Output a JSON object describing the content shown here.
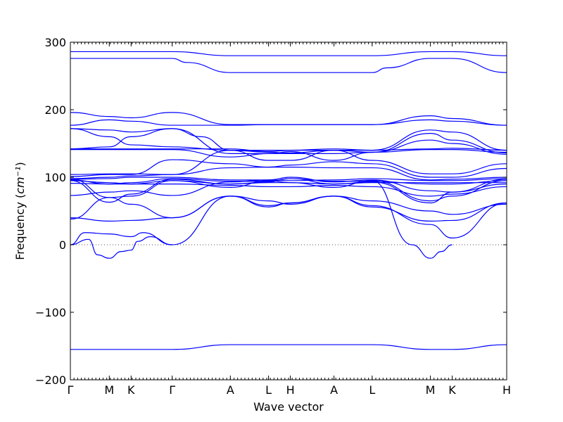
{
  "chart_data": {
    "type": "line",
    "xlabel": "Wave vector",
    "ylabel": "Frequency",
    "ylabel_unit": "cm⁻¹",
    "ylim": [
      -200,
      300
    ],
    "yticks": [
      300,
      200,
      100,
      0,
      -100,
      -200
    ],
    "ytick_labels": [
      "300",
      "200",
      "100",
      "0",
      "−100",
      "−200"
    ],
    "xlim": [
      0,
      12
    ],
    "xticks": [
      {
        "x": 0,
        "label": "Γ"
      },
      {
        "x": 1.07,
        "label": "M"
      },
      {
        "x": 1.67,
        "label": "K"
      },
      {
        "x": 2.8,
        "label": "Γ"
      },
      {
        "x": 4.4,
        "label": "A"
      },
      {
        "x": 5.45,
        "label": "L"
      },
      {
        "x": 6.05,
        "label": "H"
      },
      {
        "x": 7.25,
        "label": "A"
      },
      {
        "x": 8.3,
        "label": "L"
      },
      {
        "x": 9.9,
        "label": "M"
      },
      {
        "x": 10.5,
        "label": "K"
      },
      {
        "x": 12,
        "label": "H"
      }
    ],
    "zero_line": true,
    "series": [
      {
        "x": [
          0,
          1.07,
          1.67,
          2.8,
          4.4,
          5.45,
          6.05,
          7.25,
          8.3,
          9.9,
          10.5,
          12
        ],
        "values": [
          286,
          286,
          286,
          286,
          280,
          280,
          280,
          280,
          280,
          286,
          286,
          280
        ]
      },
      {
        "x": [
          0,
          1.07,
          1.67,
          2.8,
          3.2,
          4.4,
          5.45,
          6.05,
          7.25,
          8.3,
          8.7,
          9.9,
          10.5,
          12
        ],
        "values": [
          276,
          276,
          276,
          276,
          270,
          255,
          255,
          255,
          255,
          255,
          262,
          276,
          276,
          255
        ]
      },
      {
        "x": [
          0,
          1.07,
          1.67,
          2.8,
          4.4,
          5.45,
          6.05,
          7.25,
          8.3,
          9.9,
          10.5,
          12
        ],
        "values": [
          196,
          190,
          188,
          196,
          178,
          178,
          178,
          178,
          178,
          191,
          187,
          177
        ]
      },
      {
        "x": [
          0,
          1.07,
          1.67,
          2.8,
          4.4,
          5.45,
          6.05,
          7.25,
          8.3,
          9.9,
          10.5,
          12
        ],
        "values": [
          177,
          185,
          183,
          177,
          177,
          178,
          178,
          178,
          178,
          185,
          183,
          177
        ]
      },
      {
        "x": [
          0,
          1.07,
          1.67,
          2.8,
          3.6,
          4.4,
          5.45,
          6.05,
          7.25,
          8.3,
          9.9,
          10.5,
          12
        ],
        "values": [
          172,
          170,
          167,
          172,
          160,
          140,
          140,
          140,
          140,
          140,
          170,
          167,
          140
        ]
      },
      {
        "x": [
          0,
          1.07,
          1.67,
          2.8,
          4.4,
          5.45,
          6.05,
          7.25,
          8.3,
          9.9,
          10.5,
          12
        ],
        "values": [
          172,
          160,
          148,
          145,
          140,
          137,
          136,
          140,
          137,
          165,
          155,
          136
        ]
      },
      {
        "x": [
          0,
          1.07,
          1.67,
          2.8,
          4.4,
          5.45,
          6.05,
          7.25,
          8.3,
          9.9,
          10.5,
          12
        ],
        "values": [
          142,
          145,
          160,
          172,
          135,
          135,
          135,
          135,
          137,
          155,
          150,
          134
        ]
      },
      {
        "x": [
          0,
          1.07,
          1.67,
          2.8,
          4.4,
          5.45,
          6.05,
          7.25,
          8.3,
          9.9,
          10.5,
          12
        ],
        "values": [
          142,
          142,
          142,
          142,
          142,
          138,
          140,
          142,
          140,
          142,
          143,
          140
        ]
      },
      {
        "x": [
          0,
          1.07,
          1.67,
          2.8,
          4.4,
          5.45,
          6.05,
          7.25,
          8.3,
          9.9,
          10.5,
          12
        ],
        "values": [
          141,
          141,
          141,
          141,
          130,
          135,
          138,
          125,
          137,
          141,
          141,
          137
        ]
      },
      {
        "x": [
          0,
          1.07,
          1.67,
          2.8,
          4.4,
          5.45,
          6.05,
          7.25,
          8.3,
          9.9,
          10.5,
          12
        ],
        "values": [
          104,
          105,
          105,
          104,
          140,
          125,
          125,
          140,
          125,
          105,
          105,
          120
        ]
      },
      {
        "x": [
          0,
          1.07,
          1.67,
          2.8,
          4.4,
          5.45,
          6.05,
          7.25,
          8.3,
          9.9,
          10.5,
          12
        ],
        "values": [
          101,
          104,
          104,
          126,
          120,
          115,
          118,
          123,
          120,
          100,
          100,
          113
        ]
      },
      {
        "x": [
          0,
          1.07,
          1.67,
          2.8,
          4.4,
          5.45,
          6.05,
          7.25,
          8.3,
          9.9,
          10.5,
          12
        ],
        "values": [
          98,
          100,
          102,
          104,
          114,
          115,
          115,
          114,
          114,
          96,
          97,
          100
        ]
      },
      {
        "x": [
          0,
          1.07,
          1.67,
          2.8,
          4.4,
          5.45,
          6.05,
          7.25,
          8.3,
          9.9,
          10.5,
          12
        ],
        "values": [
          97,
          98,
          100,
          100,
          96,
          96,
          95,
          96,
          98,
          95,
          95,
          98
        ]
      },
      {
        "x": [
          0,
          1.07,
          1.67,
          2.8,
          4.4,
          5.45,
          6.05,
          7.25,
          8.3,
          9.9,
          10.5,
          12
        ],
        "values": [
          96,
          90,
          92,
          98,
          94,
          94,
          98,
          94,
          94,
          90,
          90,
          95
        ]
      },
      {
        "x": [
          0,
          1.07,
          1.67,
          2.8,
          4.4,
          5.45,
          6.05,
          7.25,
          8.3,
          9.9,
          10.5,
          12
        ],
        "values": [
          95,
          92,
          90,
          95,
          90,
          92,
          92,
          90,
          92,
          92,
          92,
          92
        ]
      },
      {
        "x": [
          0,
          1.07,
          1.67,
          2.8,
          4.4,
          5.45,
          6.05,
          7.25,
          8.3,
          9.9,
          10.5,
          12
        ],
        "values": [
          91,
          90,
          90,
          90,
          88,
          86,
          86,
          88,
          86,
          72,
          75,
          86
        ]
      },
      {
        "x": [
          0,
          1.07,
          1.67,
          2.8,
          4.4,
          5.45,
          6.05,
          7.25,
          8.3,
          9.9,
          10.5,
          12
        ],
        "values": [
          73,
          78,
          80,
          73,
          93,
          96,
          100,
          93,
          96,
          80,
          78,
          90
        ]
      },
      {
        "x": [
          0,
          1.07,
          1.67,
          2.8,
          4.4,
          5.45,
          6.05,
          7.25,
          8.3,
          9.9,
          10.5,
          12
        ],
        "values": [
          98,
          70,
          72,
          95,
          85,
          95,
          92,
          85,
          95,
          65,
          72,
          95
        ]
      },
      {
        "x": [
          0,
          1.07,
          1.67,
          2.8,
          4.4,
          5.45,
          6.05,
          7.25,
          8.3,
          9.9,
          10.5,
          12
        ],
        "values": [
          95,
          63,
          75,
          97,
          90,
          93,
          98,
          90,
          93,
          62,
          78,
          97
        ]
      },
      {
        "x": [
          0,
          1.07,
          1.67,
          2.8,
          4.4,
          5.45,
          6.05,
          7.25,
          8.3,
          9.9,
          10.5,
          12
        ],
        "values": [
          40,
          35,
          36,
          40,
          72,
          56,
          62,
          72,
          56,
          35,
          36,
          62
        ]
      },
      {
        "x": [
          0,
          1.07,
          1.67,
          2.8,
          4.4,
          5.45,
          6.05,
          7.25,
          8.3,
          9.9,
          10.5,
          12
        ],
        "values": [
          38,
          70,
          60,
          40,
          72,
          65,
          60,
          72,
          65,
          50,
          45,
          60
        ]
      },
      {
        "x": [
          0,
          0.4,
          1.07,
          1.67,
          2.0,
          2.8,
          4.4,
          5.45,
          6.05,
          7.25,
          8.3,
          9.9,
          10.5,
          12
        ],
        "values": [
          0,
          18,
          16,
          12,
          18,
          0,
          72,
          58,
          62,
          72,
          58,
          30,
          10,
          62
        ]
      },
      {
        "x": [
          0,
          0.5,
          0.75,
          1.07,
          1.4,
          1.67,
          1.85,
          2.2,
          2.8
        ],
        "values": [
          0,
          8,
          -15,
          -20,
          -10,
          -8,
          5,
          12,
          0
        ]
      },
      {
        "x": [
          8.3,
          9.4,
          9.9,
          10.2,
          10.5
        ],
        "values": [
          95,
          0,
          -20,
          -10,
          0
        ]
      },
      {
        "x": [
          0,
          1.07,
          1.67,
          2.8,
          4.4,
          5.45,
          6.05,
          7.25,
          8.3,
          9.9,
          10.5,
          12
        ],
        "values": [
          -155,
          -155,
          -155,
          -155,
          -148,
          -148,
          -148,
          -148,
          -148,
          -155,
          -155,
          -148
        ]
      }
    ]
  }
}
